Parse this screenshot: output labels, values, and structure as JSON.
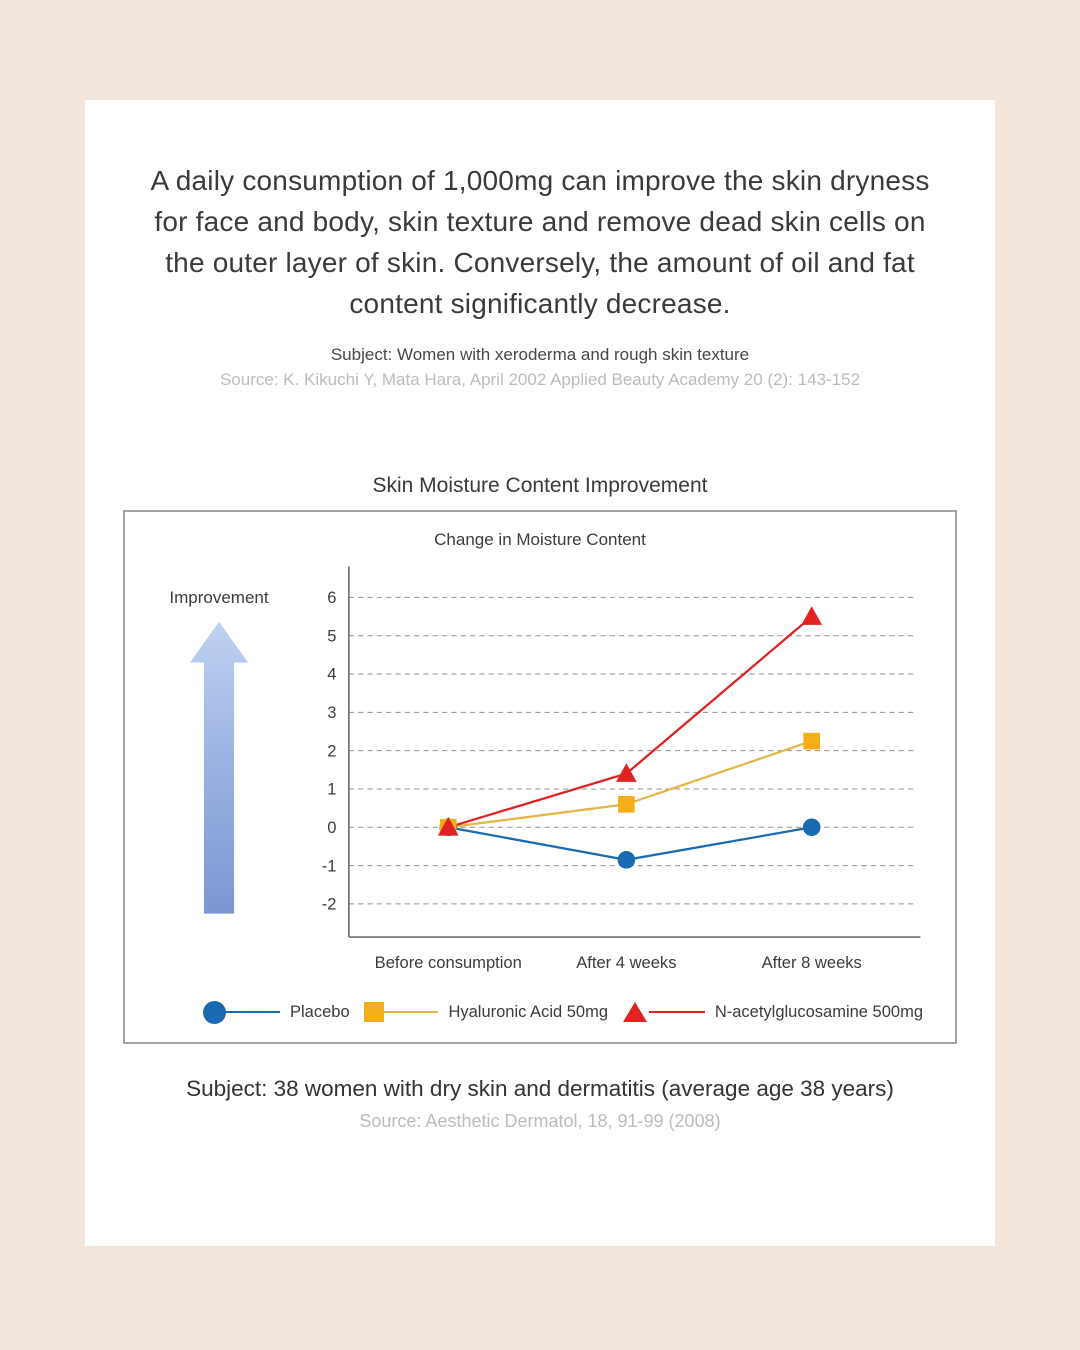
{
  "header": {
    "headline": "A daily consumption of 1,000mg can improve the skin dryness for face and body, skin texture and remove dead skin cells on the outer layer of skin. Conversely, the amount of oil and fat content significantly decrease.",
    "subject": "Subject: Women with xeroderma and rough skin texture",
    "source": "Source: K. Kikuchi Y, Mata Hara, April 2002 Applied Beauty Academy 20 (2): 143-152"
  },
  "chart": {
    "section_title": "Skin Moisture Content Improvement",
    "improvement_label": "Improvement"
  },
  "footer": {
    "subject": "Subject: 38 women with dry skin and dermatitis  (average age 38 years)",
    "source": "Source: Aesthetic Dermatol, 18, 91-99 (2008)"
  },
  "chart_data": {
    "type": "line",
    "title": "Change in Moisture Content",
    "categories": [
      "Before consumption",
      "After 4 weeks",
      "After 8 weeks"
    ],
    "series": [
      {
        "name": "Placebo",
        "marker": "circle",
        "color": "#1a6ab2",
        "line_color": "#1a6ab2",
        "values": [
          0,
          -0.85,
          0
        ]
      },
      {
        "name": "Hyaluronic Acid 50mg",
        "marker": "square",
        "color": "#f5ae17",
        "line_color": "#e3b64a",
        "values": [
          0,
          0.6,
          2.25
        ]
      },
      {
        "name": "N-acetylglucosamine 500mg",
        "marker": "triangle",
        "color": "#e02222",
        "line_color": "#e02222",
        "values": [
          0,
          1.4,
          5.5
        ]
      }
    ],
    "ylim": [
      -2,
      6
    ],
    "yticks": [
      6,
      5,
      4,
      3,
      2,
      1,
      0,
      -1,
      -2
    ],
    "grid": "dashed-horizontal",
    "legend_position": "bottom",
    "colors": {
      "grid": "#909090",
      "axis": "#6f6f6f",
      "text": "#3c3c3c"
    }
  }
}
